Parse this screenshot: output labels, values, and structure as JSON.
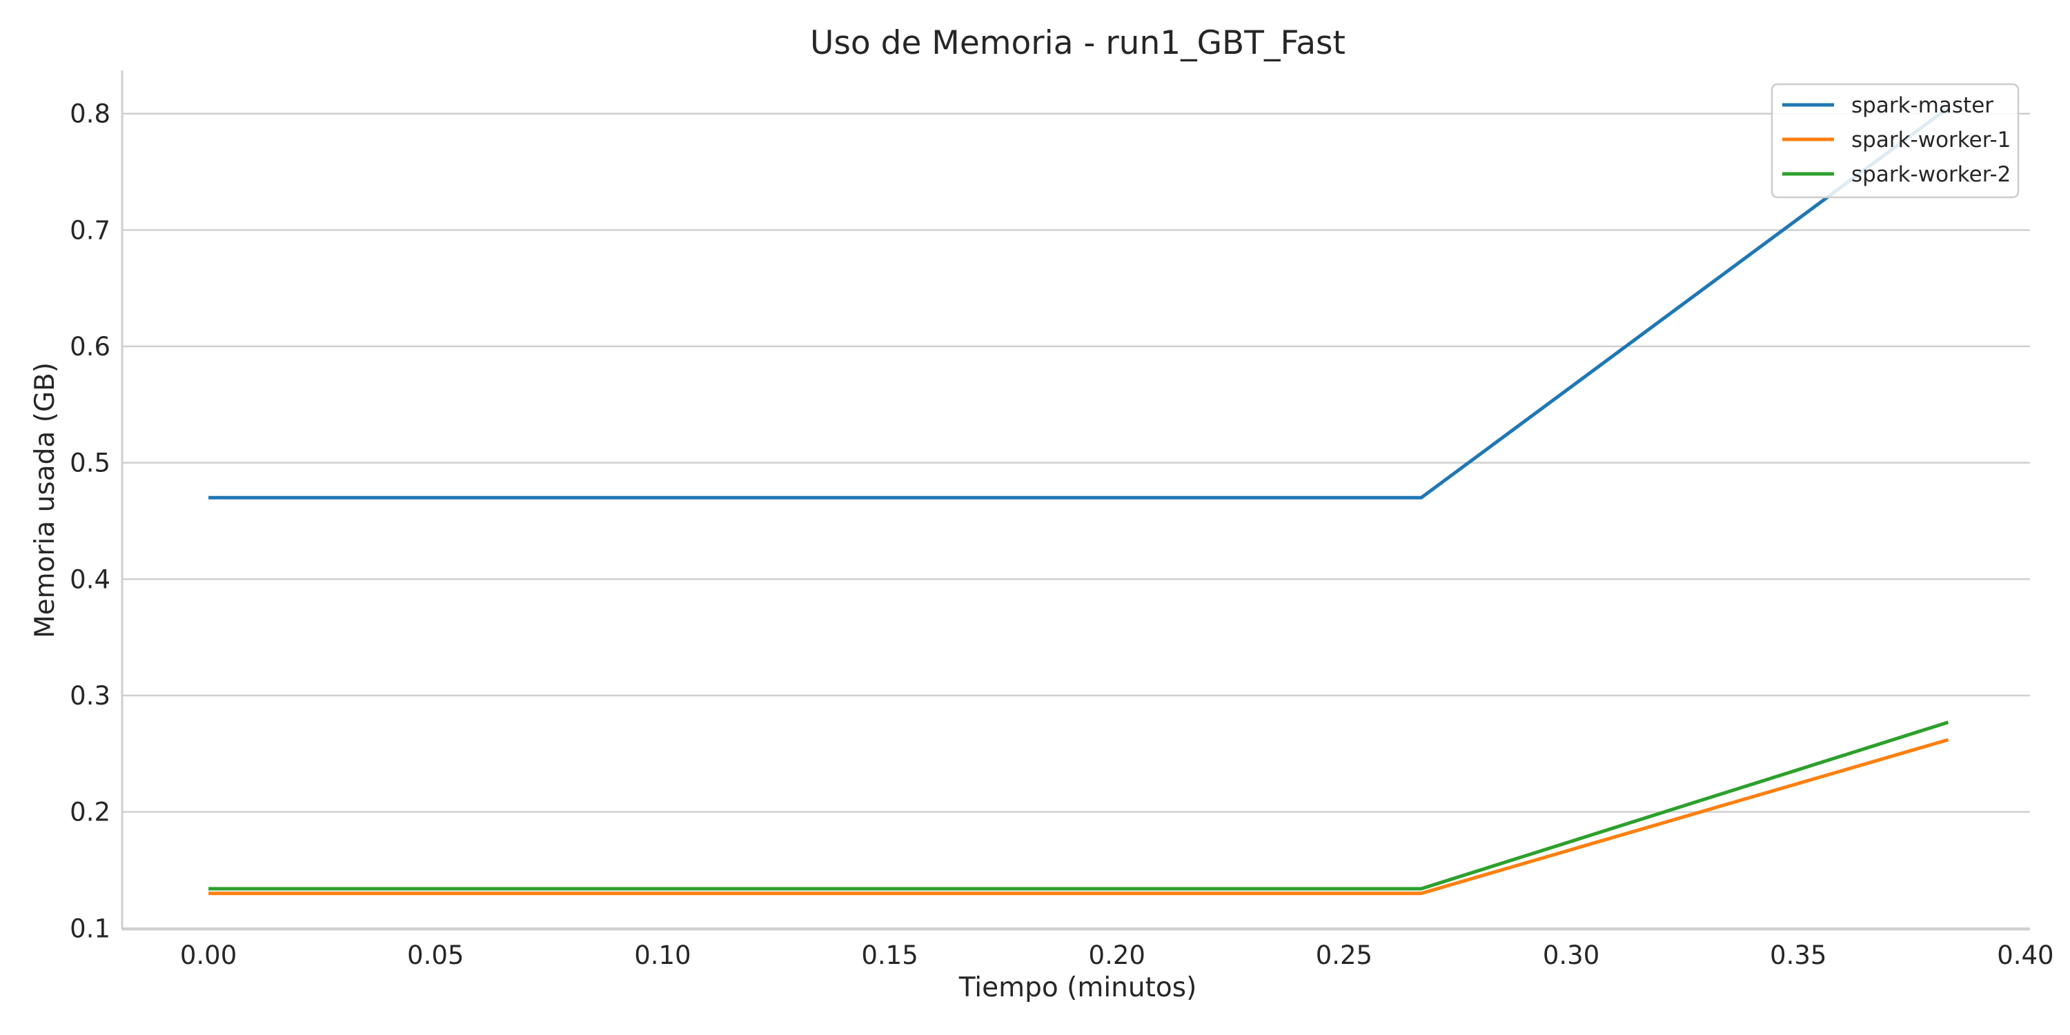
{
  "chart_data": {
    "type": "line",
    "title": "Uso de Memoria - run1_GBT_Fast",
    "xlabel": "Tiempo (minutos)",
    "ylabel": "Memoria usada (GB)",
    "xlim": [
      -0.019,
      0.401
    ],
    "ylim": [
      0.099,
      0.836
    ],
    "xticks": [
      "0.00",
      "0.05",
      "0.10",
      "0.15",
      "0.20",
      "0.25",
      "0.30",
      "0.35",
      "0.40"
    ],
    "yticks": [
      "0.1",
      "0.2",
      "0.3",
      "0.4",
      "0.5",
      "0.6",
      "0.7",
      "0.8"
    ],
    "grid": "horizontal",
    "legend_position": "top-right",
    "series": [
      {
        "name": "spark-master",
        "color": "#1f77b4",
        "x": [
          0.0,
          0.267,
          0.383
        ],
        "y": [
          0.47,
          0.47,
          0.805
        ]
      },
      {
        "name": "spark-worker-1",
        "color": "#ff7f0e",
        "x": [
          0.0,
          0.267,
          0.383
        ],
        "y": [
          0.13,
          0.13,
          0.262
        ]
      },
      {
        "name": "spark-worker-2",
        "color": "#2ca02c",
        "x": [
          0.0,
          0.267,
          0.383
        ],
        "y": [
          0.134,
          0.134,
          0.277
        ]
      }
    ]
  }
}
